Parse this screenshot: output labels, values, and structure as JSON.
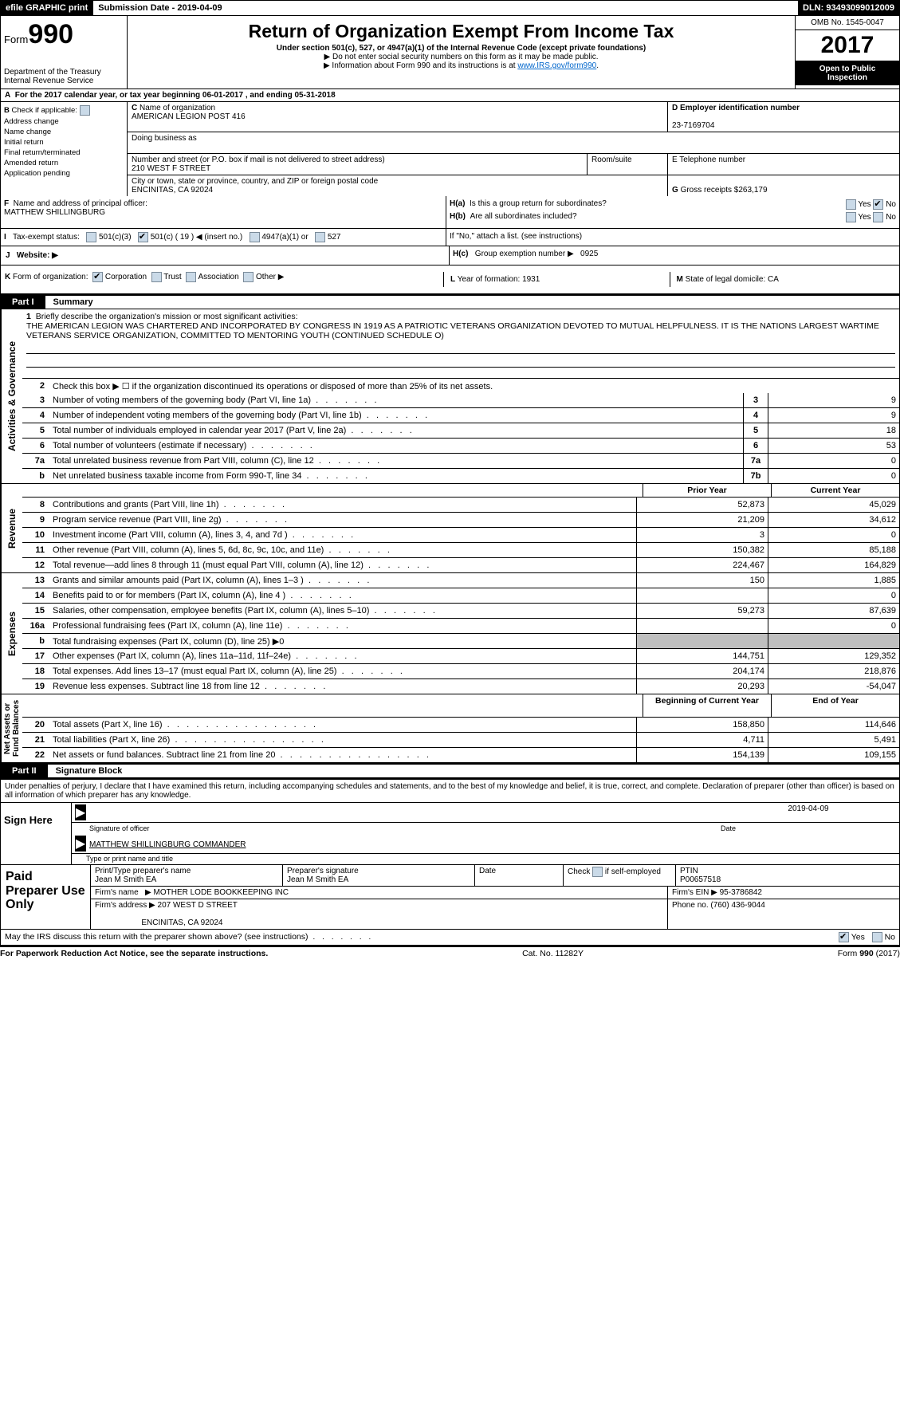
{
  "topbar": {
    "efile": "efile GRAPHIC print",
    "submission_label": "Submission Date - ",
    "submission_date": "2019-04-09",
    "dln_label": "DLN: ",
    "dln": "93493099012009"
  },
  "header": {
    "form_word": "Form",
    "form_num": "990",
    "dept1": "Department of the Treasury",
    "dept2": "Internal Revenue Service",
    "title": "Return of Organization Exempt From Income Tax",
    "sub1": "Under section 501(c), 527, or 4947(a)(1) of the Internal Revenue Code (except private foundations)",
    "sub2": "▶ Do not enter social security numbers on this form as it may be made public.",
    "sub3_a": "▶ Information about Form 990 and its instructions is at ",
    "sub3_link": "www.IRS.gov/form990",
    "omb": "OMB No. 1545-0047",
    "year": "2017",
    "open": "Open to Public Inspection"
  },
  "rowA": {
    "label_a": "A",
    "text_a": "For the 2017 calendar year, or tax year beginning ",
    "begin": "06-01-2017",
    "text_mid": " , and ending ",
    "end": "05-31-2018"
  },
  "colB": {
    "label": "B",
    "intro": "Check if applicable:",
    "addr": "Address change",
    "name": "Name change",
    "init": "Initial return",
    "final": "Final return/terminated",
    "amend": "Amended return",
    "app": "Application pending"
  },
  "colC": {
    "c_label": "C",
    "c_name_label": "Name of organization",
    "c_name": "AMERICAN LEGION POST 416",
    "dba_label": "Doing business as",
    "street_label": "Number and street (or P.O. box if mail is not delivered to street address)",
    "street": "210 WEST F STREET",
    "room_label": "Room/suite",
    "city_label": "City or town, state or province, country, and ZIP or foreign postal code",
    "city": "ENCINITAS, CA  92024"
  },
  "colD": {
    "d_label": "D Employer identification number",
    "ein": "23-7169704",
    "e_label": "E Telephone number",
    "g_label": "G",
    "g_text": "Gross receipts $ ",
    "g_val": "263,179"
  },
  "colF": {
    "f_label": "F",
    "f_text": "Name and address of principal officer:",
    "f_name": "MATTHEW SHILLINGBURG"
  },
  "colH": {
    "ha_label": "H(a)",
    "ha_text": "Is this a group return for subordinates?",
    "hb_label": "H(b)",
    "hb_text": "Are all subordinates included?",
    "hb_note": "If \"No,\" attach a list. (see instructions)",
    "hc_label": "H(c)",
    "hc_text": "Group exemption number ▶",
    "hc_val": "0925",
    "yes": "Yes",
    "no": "No"
  },
  "rowI": {
    "label": "I",
    "text": "Tax-exempt status:",
    "opt1": "501(c)(3)",
    "opt2a": "501(c) ( ",
    "opt2b": "19",
    "opt2c": " ) ◀ (insert no.)",
    "opt3": "4947(a)(1) or",
    "opt4": "527"
  },
  "rowJ": {
    "label": "J",
    "text": "Website: ▶"
  },
  "rowK": {
    "label": "K",
    "text": "Form of organization:",
    "corp": "Corporation",
    "trust": "Trust",
    "assoc": "Association",
    "other": "Other ▶"
  },
  "rowLM": {
    "l_label": "L",
    "l_text": "Year of formation: ",
    "l_val": "1931",
    "m_label": "M",
    "m_text": "State of legal domicile: ",
    "m_val": "CA"
  },
  "part1": {
    "label": "Part I",
    "title": "Summary"
  },
  "vlabels": {
    "gov": "Activities & Governance",
    "rev": "Revenue",
    "exp": "Expenses",
    "net": "Net Assets or\nFund Balances"
  },
  "mission": {
    "num": "1",
    "lead": "Briefly describe the organization's mission or most significant activities:",
    "text": "THE AMERICAN LEGION WAS CHARTERED AND INCORPORATED BY CONGRESS IN 1919 AS A PATRIOTIC VETERANS ORGANIZATION DEVOTED TO MUTUAL HELPFULNESS. IT IS THE NATIONS LARGEST WARTIME VETERANS SERVICE ORGANIZATION, COMMITTED TO MENTORING YOUTH (CONTINUED SCHEDULE O)"
  },
  "lines_gov": [
    {
      "num": "2",
      "desc": "Check this box ▶ ☐ if the organization discontinued its operations or disposed of more than 25% of its net assets."
    },
    {
      "num": "3",
      "desc": "Number of voting members of the governing body (Part VI, line 1a)",
      "cell": "3",
      "val": "9"
    },
    {
      "num": "4",
      "desc": "Number of independent voting members of the governing body (Part VI, line 1b)",
      "cell": "4",
      "val": "9"
    },
    {
      "num": "5",
      "desc": "Total number of individuals employed in calendar year 2017 (Part V, line 2a)",
      "cell": "5",
      "val": "18"
    },
    {
      "num": "6",
      "desc": "Total number of volunteers (estimate if necessary)",
      "cell": "6",
      "val": "53"
    },
    {
      "num": "7a",
      "desc": "Total unrelated business revenue from Part VIII, column (C), line 12",
      "cell": "7a",
      "val": "0"
    },
    {
      "num": "b",
      "desc": "Net unrelated business taxable income from Form 990-T, line 34",
      "cell": "7b",
      "val": "0"
    }
  ],
  "col_headers": {
    "prior": "Prior Year",
    "current": "Current Year"
  },
  "lines_rev": [
    {
      "num": "8",
      "desc": "Contributions and grants (Part VIII, line 1h)",
      "prior": "52,873",
      "curr": "45,029"
    },
    {
      "num": "9",
      "desc": "Program service revenue (Part VIII, line 2g)",
      "prior": "21,209",
      "curr": "34,612"
    },
    {
      "num": "10",
      "desc": "Investment income (Part VIII, column (A), lines 3, 4, and 7d )",
      "prior": "3",
      "curr": "0"
    },
    {
      "num": "11",
      "desc": "Other revenue (Part VIII, column (A), lines 5, 6d, 8c, 9c, 10c, and 11e)",
      "prior": "150,382",
      "curr": "85,188"
    },
    {
      "num": "12",
      "desc": "Total revenue—add lines 8 through 11 (must equal Part VIII, column (A), line 12)",
      "prior": "224,467",
      "curr": "164,829"
    }
  ],
  "lines_exp": [
    {
      "num": "13",
      "desc": "Grants and similar amounts paid (Part IX, column (A), lines 1–3 )",
      "prior": "150",
      "curr": "1,885"
    },
    {
      "num": "14",
      "desc": "Benefits paid to or for members (Part IX, column (A), line 4 )",
      "prior": "",
      "curr": "0"
    },
    {
      "num": "15",
      "desc": "Salaries, other compensation, employee benefits (Part IX, column (A), lines 5–10)",
      "prior": "59,273",
      "curr": "87,639"
    },
    {
      "num": "16a",
      "desc": "Professional fundraising fees (Part IX, column (A), line 11e)",
      "prior": "",
      "curr": "0"
    },
    {
      "num": "b",
      "desc": "Total fundraising expenses (Part IX, column (D), line 25) ▶0",
      "grey": true
    },
    {
      "num": "17",
      "desc": "Other expenses (Part IX, column (A), lines 11a–11d, 11f–24e)",
      "prior": "144,751",
      "curr": "129,352"
    },
    {
      "num": "18",
      "desc": "Total expenses. Add lines 13–17 (must equal Part IX, column (A), line 25)",
      "prior": "204,174",
      "curr": "218,876"
    },
    {
      "num": "19",
      "desc": "Revenue less expenses. Subtract line 18 from line 12",
      "prior": "20,293",
      "curr": "-54,047"
    }
  ],
  "col_headers2": {
    "beg": "Beginning of Current Year",
    "end": "End of Year"
  },
  "lines_net": [
    {
      "num": "20",
      "desc": "Total assets (Part X, line 16)",
      "prior": "158,850",
      "curr": "114,646"
    },
    {
      "num": "21",
      "desc": "Total liabilities (Part X, line 26)",
      "prior": "4,711",
      "curr": "5,491"
    },
    {
      "num": "22",
      "desc": "Net assets or fund balances. Subtract line 21 from line 20",
      "prior": "154,139",
      "curr": "109,155"
    }
  ],
  "part2": {
    "label": "Part II",
    "title": "Signature Block"
  },
  "sig": {
    "intro": "Under penalties of perjury, I declare that I have examined this return, including accompanying schedules and statements, and to the best of my knowledge and belief, it is true, correct, and complete. Declaration of preparer (other than officer) is based on all information of which preparer has any knowledge.",
    "sign_here": "Sign Here",
    "sig_officer": "Signature of officer",
    "date_label": "Date",
    "date_val": "2019-04-09",
    "name_title": "MATTHEW SHILLINGBURG COMMANDER",
    "type_name": "Type or print name and title"
  },
  "paid": {
    "label": "Paid Preparer Use Only",
    "print_label": "Print/Type preparer's name",
    "print_name": "Jean M Smith EA",
    "sig_label": "Preparer's signature",
    "sig_name": "Jean M Smith EA",
    "date_label": "Date",
    "check_label": "Check",
    "check_if": "if self-employed",
    "ptin_label": "PTIN",
    "ptin": "P00657518",
    "firm_name_label": "Firm's name",
    "firm_name": "MOTHER LODE BOOKKEEPING INC",
    "firm_ein_label": "Firm's EIN ▶",
    "firm_ein": "95-3786842",
    "firm_addr_label": "Firm's address ▶",
    "firm_addr1": "207 WEST D STREET",
    "firm_addr2": "ENCINITAS, CA  92024",
    "phone_label": "Phone no. ",
    "phone": "(760) 436-9044"
  },
  "discuss": {
    "text": "May the IRS discuss this return with the preparer shown above? (see instructions)",
    "yes": "Yes",
    "no": "No"
  },
  "footer": {
    "left": "For Paperwork Reduction Act Notice, see the separate instructions.",
    "mid": "Cat. No. 11282Y",
    "right_a": "Form ",
    "right_b": "990",
    "right_c": " (2017)"
  }
}
